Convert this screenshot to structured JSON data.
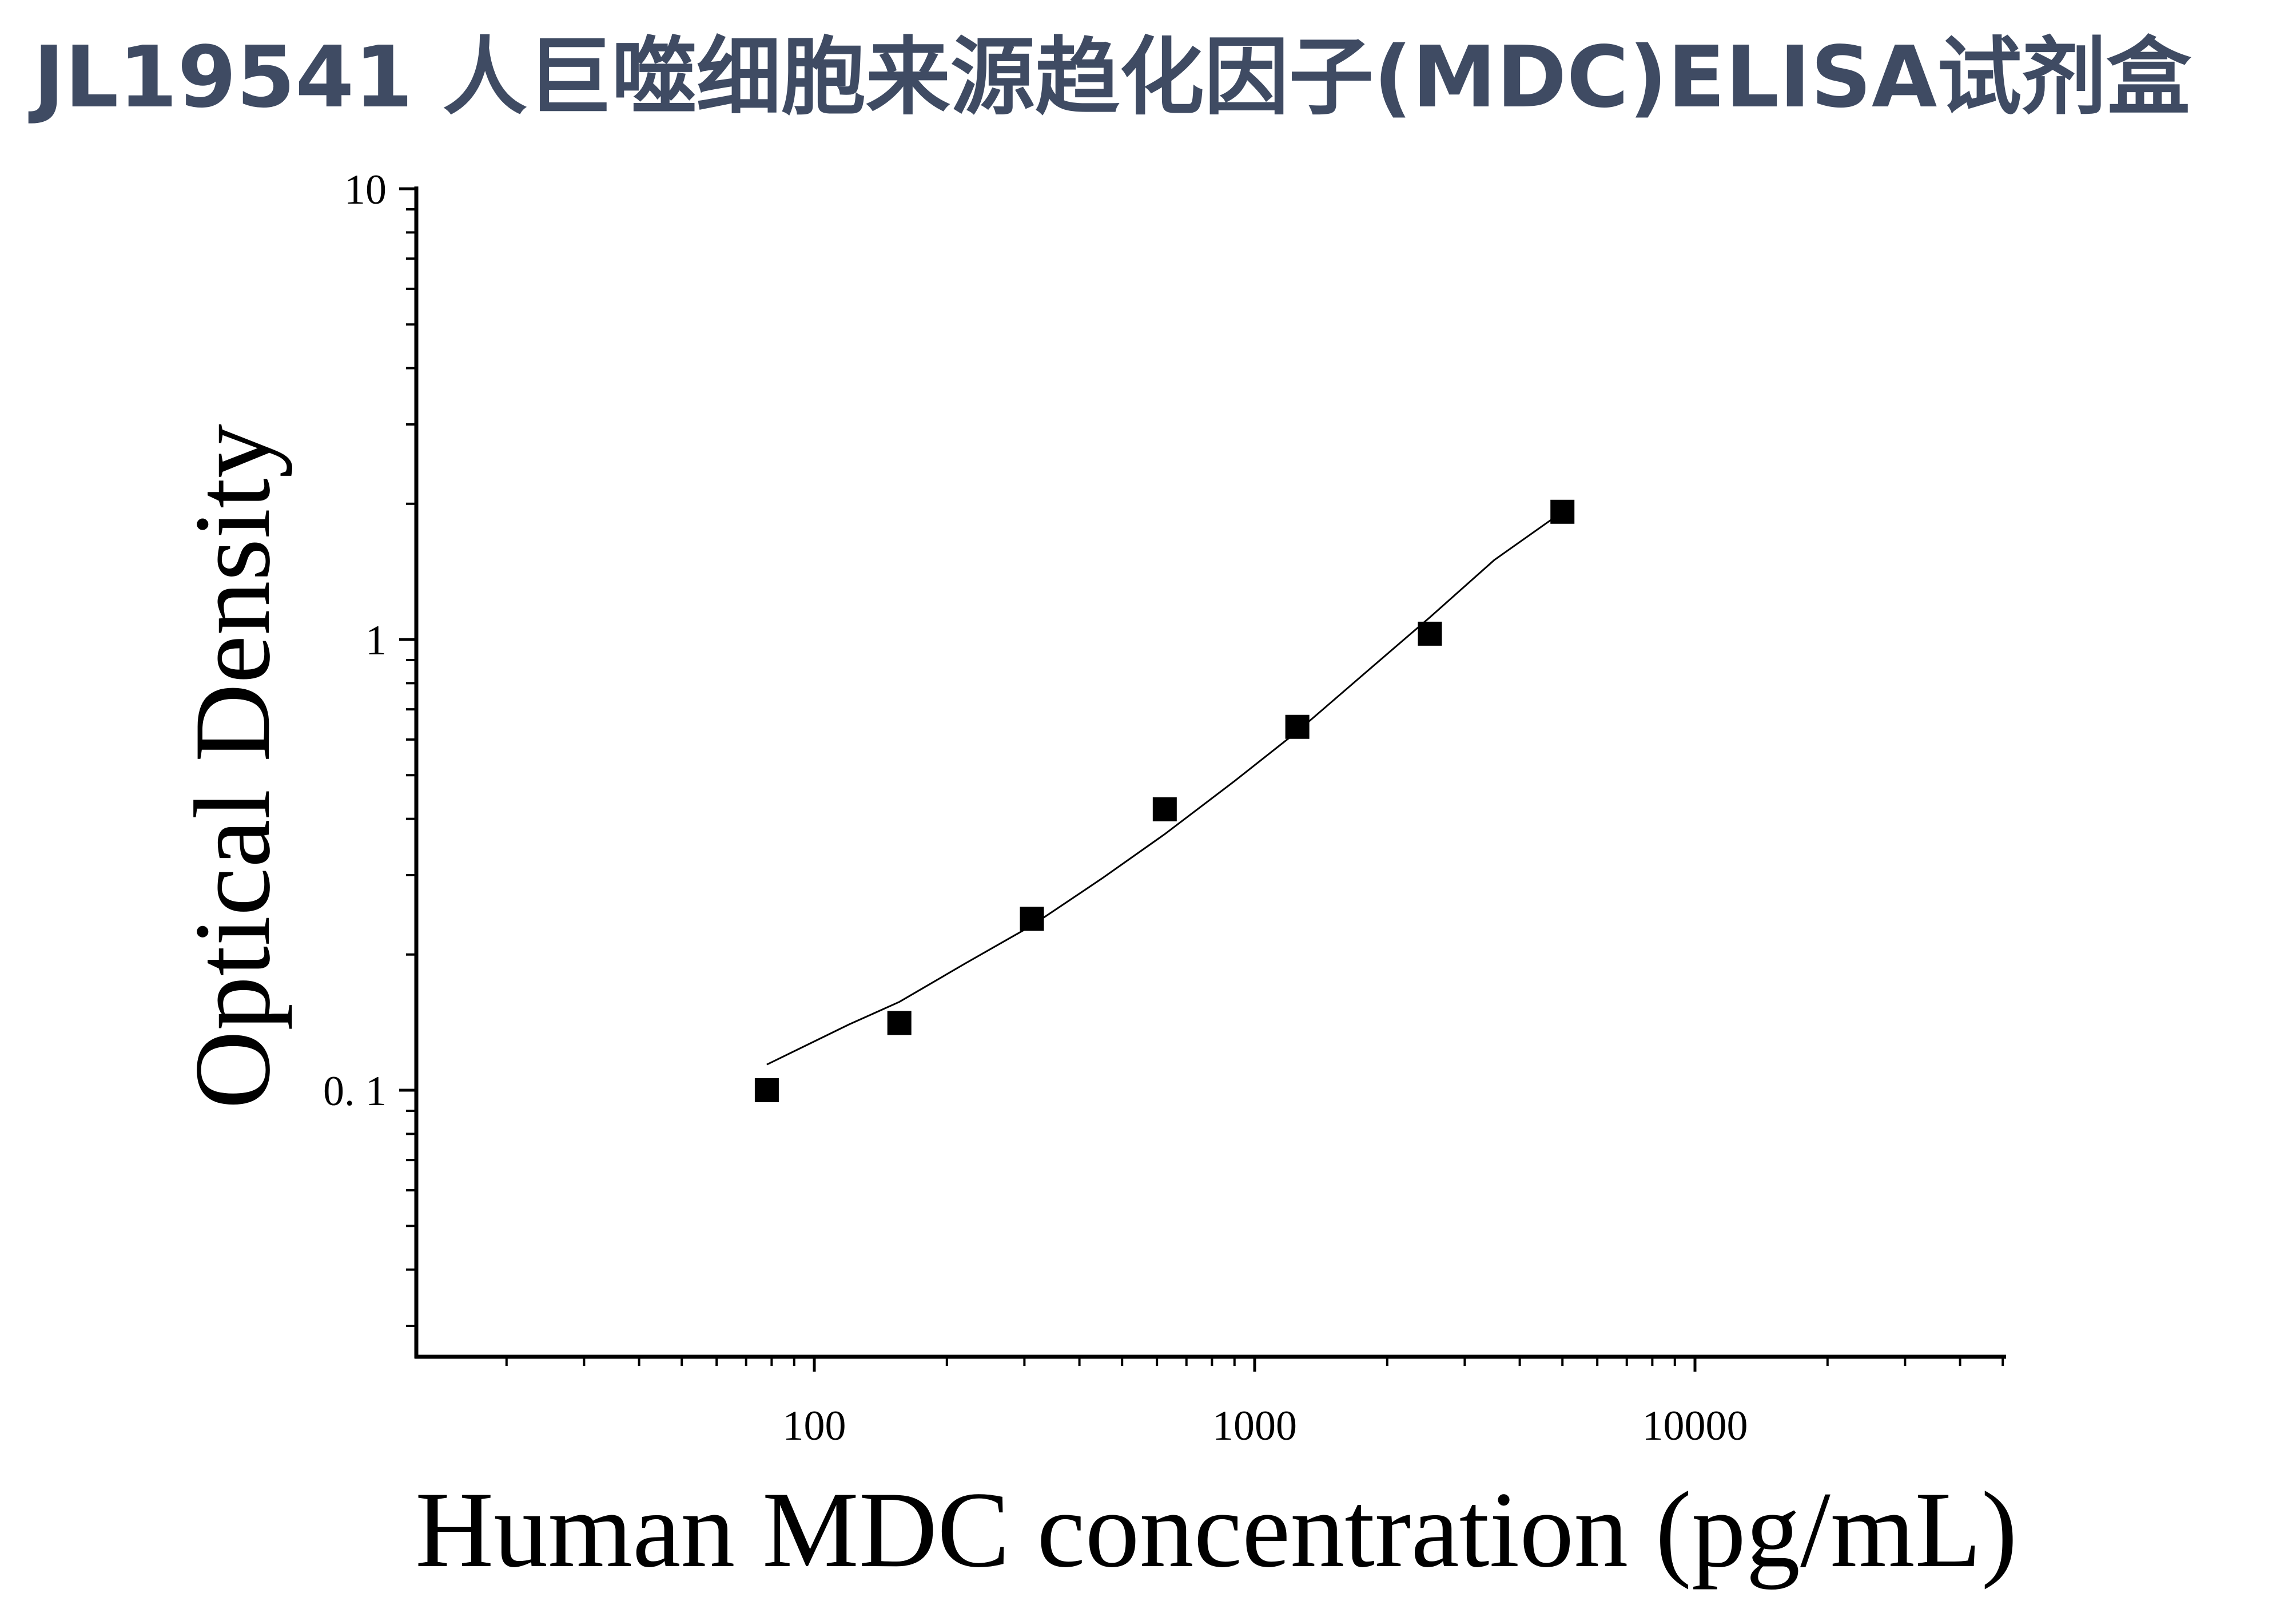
{
  "title": "JL19541 人巨噬细胞来源趋化因子(MDC)ELISA试剂盒",
  "chart_data": {
    "type": "scatter",
    "xlabel": "Human MDC concentration (pg/mL)",
    "ylabel": "Optical Density",
    "x_scale": "log",
    "y_scale": "log",
    "xlim": [
      10,
      50000
    ],
    "ylim": [
      0.026,
      10
    ],
    "x_ticks": [
      {
        "value": 100,
        "label": "100"
      },
      {
        "value": 1000,
        "label": "1000"
      },
      {
        "value": 10000,
        "label": "10000"
      }
    ],
    "y_ticks": [
      {
        "value": 10,
        "label": "10"
      },
      {
        "value": 1,
        "label": "1"
      },
      {
        "value": 0.1,
        "label": "0. 1"
      }
    ],
    "grid": false,
    "legend": "none",
    "series": [
      {
        "marker": "square",
        "color": "#000000",
        "x": [
          78,
          156,
          312,
          625,
          1250,
          2500,
          5000
        ],
        "y": [
          0.1,
          0.141,
          0.24,
          0.42,
          0.64,
          1.03,
          1.92
        ]
      }
    ],
    "fit_curve": {
      "color": "#000000",
      "x": [
        78,
        120,
        156,
        220,
        312,
        450,
        625,
        900,
        1250,
        1800,
        2500,
        3500,
        5000
      ],
      "y": [
        0.114,
        0.14,
        0.157,
        0.191,
        0.232,
        0.295,
        0.37,
        0.485,
        0.625,
        0.85,
        1.12,
        1.5,
        1.92
      ]
    }
  }
}
